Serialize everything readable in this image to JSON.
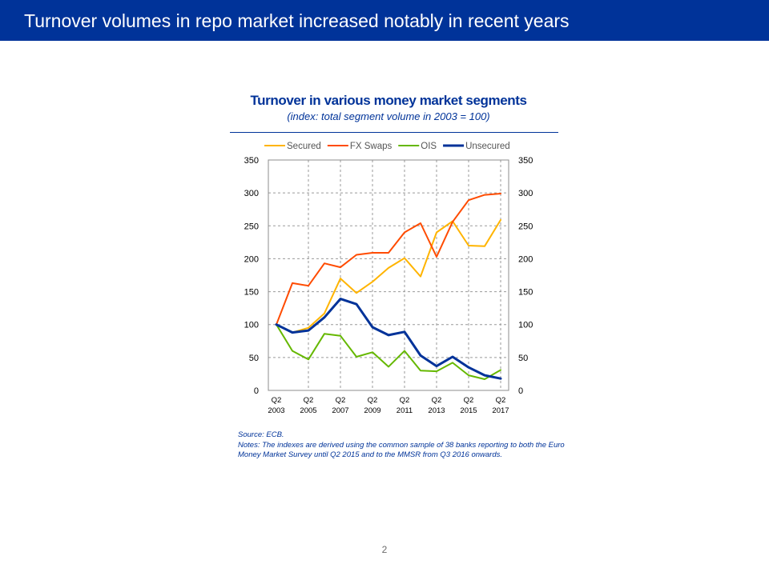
{
  "header": {
    "title": "Turnover volumes in repo market increased notably in recent years"
  },
  "colors": {
    "header_bg": "#003399",
    "secured": "#FFB400",
    "fx_swaps": "#FF4B00",
    "ois": "#65B800",
    "unsecured": "#003299"
  },
  "notes": {
    "source": "Source: ECB.",
    "text": "Notes: The indexes are derived using the common sample of 38 banks reporting to both the Euro Money Market Survey until Q2 2015 and to the MMSR from Q3 2016 onwards."
  },
  "page_number": "2",
  "chart_data": {
    "type": "line",
    "title": "Turnover in various money market segments",
    "subtitle": "(index: total segment volume in 2003 = 100)",
    "xlabel": "",
    "ylabel": "",
    "ylim": [
      0,
      350
    ],
    "yticks": [
      0,
      50,
      100,
      150,
      200,
      250,
      300,
      350
    ],
    "grid": true,
    "legend_position": "top",
    "x": [
      "Q2 2003",
      "Q2 2004",
      "Q2 2005",
      "Q2 2006",
      "Q2 2007",
      "Q2 2008",
      "Q2 2009",
      "Q2 2010",
      "Q2 2011",
      "Q2 2012",
      "Q2 2013",
      "Q2 2014",
      "Q2 2015",
      "Q2 2016",
      "Q2 2017"
    ],
    "x_tick_labels": [
      {
        "line1": "Q2",
        "line2": "2003"
      },
      {
        "line1": "Q2",
        "line2": "2005"
      },
      {
        "line1": "Q2",
        "line2": "2007"
      },
      {
        "line1": "Q2",
        "line2": "2009"
      },
      {
        "line1": "Q2",
        "line2": "2011"
      },
      {
        "line1": "Q2",
        "line2": "2013"
      },
      {
        "line1": "Q2",
        "line2": "2015"
      },
      {
        "line1": "Q2",
        "line2": "2017"
      }
    ],
    "series": [
      {
        "name": "Secured",
        "color": "#FFB400",
        "width": 2,
        "values": [
          100,
          88,
          95,
          117,
          170,
          148,
          165,
          186,
          201,
          173,
          240,
          257,
          220,
          219,
          259
        ]
      },
      {
        "name": "FX Swaps",
        "color": "#FF4B00",
        "width": 2,
        "values": [
          100,
          163,
          159,
          193,
          187,
          206,
          209,
          209,
          240,
          254,
          203,
          256,
          289,
          297,
          299
        ]
      },
      {
        "name": "OIS",
        "color": "#65B800",
        "width": 2,
        "values": [
          100,
          60,
          47,
          86,
          83,
          51,
          58,
          36,
          60,
          30,
          29,
          42,
          23,
          17,
          31
        ]
      },
      {
        "name": "Unsecured",
        "color": "#003299",
        "width": 3,
        "values": [
          100,
          88,
          91,
          111,
          139,
          131,
          96,
          84,
          89,
          53,
          37,
          51,
          35,
          23,
          18
        ]
      }
    ]
  }
}
